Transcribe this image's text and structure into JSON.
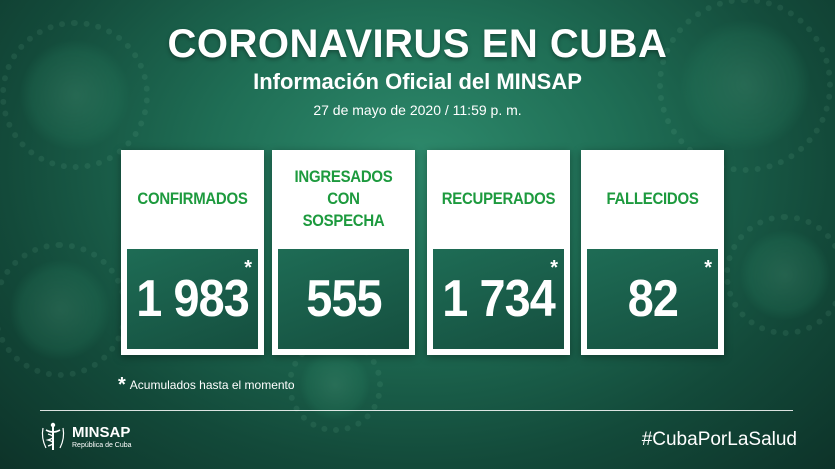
{
  "header": {
    "title": "CORONAVIRUS EN CUBA",
    "subtitle": "Información Oficial del MINSAP",
    "date": "27 de mayo de 2020 / 11:59 p. m."
  },
  "cards": [
    {
      "label": "CONFIRMADOS",
      "value": "1 983",
      "star": "*"
    },
    {
      "label": "INGRESADOS CON SOSPECHA",
      "value": "555",
      "star": ""
    },
    {
      "label": "RECUPERADOS",
      "value": "1 734",
      "star": "*"
    },
    {
      "label": "FALLECIDOS",
      "value": "82",
      "star": "*"
    }
  ],
  "footnote": {
    "symbol": "*",
    "text": "Acumulados hasta el momento"
  },
  "footer": {
    "logo_name": "MINSAP",
    "logo_sub": "República de Cuba",
    "hashtag": "#CubaPorLaSalud"
  },
  "colors": {
    "background": "#1f6e55",
    "label_green": "#1d9a3e",
    "value_box": "#1e6c55"
  }
}
